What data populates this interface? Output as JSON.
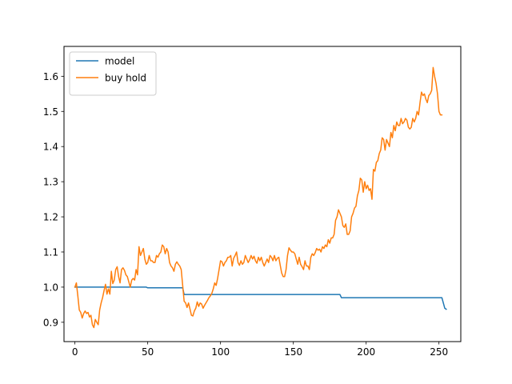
{
  "chart_data": {
    "type": "line",
    "title": "",
    "xlabel": "",
    "ylabel": "",
    "xlim": [
      -7.5,
      265
    ],
    "ylim": [
      0.845,
      1.685
    ],
    "xticks": [
      0,
      50,
      100,
      150,
      200,
      250
    ],
    "yticks": [
      0.9,
      1.0,
      1.1,
      1.2,
      1.3,
      1.4,
      1.5,
      1.6
    ],
    "grid": false,
    "legend": {
      "position": "top-left"
    },
    "series": [
      {
        "name": "model",
        "color": "#1f77b4",
        "points": [
          [
            0,
            1.0
          ],
          [
            49,
            1.0
          ],
          [
            50,
            0.998
          ],
          [
            74,
            0.998
          ],
          [
            75,
            0.979
          ],
          [
            182,
            0.979
          ],
          [
            183,
            0.97
          ],
          [
            252,
            0.97
          ],
          [
            254,
            0.94
          ],
          [
            255,
            0.937
          ]
        ]
      },
      {
        "name": "buy hold",
        "color": "#ff7f0e",
        "points": [
          [
            0,
            1.0
          ],
          [
            1,
            1.012
          ],
          [
            2,
            0.975
          ],
          [
            3,
            0.935
          ],
          [
            4,
            0.928
          ],
          [
            5,
            0.912
          ],
          [
            6,
            0.925
          ],
          [
            7,
            0.932
          ],
          [
            8,
            0.925
          ],
          [
            9,
            0.928
          ],
          [
            10,
            0.915
          ],
          [
            11,
            0.92
          ],
          [
            12,
            0.893
          ],
          [
            13,
            0.885
          ],
          [
            14,
            0.908
          ],
          [
            15,
            0.9
          ],
          [
            16,
            0.893
          ],
          [
            17,
            0.935
          ],
          [
            18,
            0.955
          ],
          [
            19,
            0.97
          ],
          [
            20,
            0.99
          ],
          [
            21,
            1.008
          ],
          [
            22,
            0.98
          ],
          [
            23,
            0.995
          ],
          [
            24,
            0.98
          ],
          [
            25,
            1.045
          ],
          [
            26,
            1.01
          ],
          [
            27,
            1.02
          ],
          [
            28,
            1.05
          ],
          [
            29,
            1.058
          ],
          [
            30,
            1.03
          ],
          [
            31,
            1.012
          ],
          [
            32,
            1.05
          ],
          [
            33,
            1.055
          ],
          [
            34,
            1.048
          ],
          [
            35,
            1.035
          ],
          [
            36,
            1.03
          ],
          [
            37,
            1.015
          ],
          [
            38,
            1.0
          ],
          [
            39,
            1.02
          ],
          [
            40,
            1.025
          ],
          [
            41,
            1.02
          ],
          [
            42,
            1.05
          ],
          [
            43,
            1.035
          ],
          [
            44,
            1.115
          ],
          [
            45,
            1.09
          ],
          [
            46,
            1.1
          ],
          [
            47,
            1.11
          ],
          [
            48,
            1.08
          ],
          [
            49,
            1.065
          ],
          [
            50,
            1.07
          ],
          [
            51,
            1.09
          ],
          [
            52,
            1.075
          ],
          [
            53,
            1.075
          ],
          [
            54,
            1.07
          ],
          [
            55,
            1.07
          ],
          [
            56,
            1.09
          ],
          [
            57,
            1.085
          ],
          [
            58,
            1.095
          ],
          [
            59,
            1.1
          ],
          [
            60,
            1.12
          ],
          [
            61,
            1.115
          ],
          [
            62,
            1.095
          ],
          [
            63,
            1.11
          ],
          [
            64,
            1.1
          ],
          [
            65,
            1.07
          ],
          [
            66,
            1.06
          ],
          [
            67,
            1.055
          ],
          [
            68,
            1.045
          ],
          [
            69,
            1.065
          ],
          [
            70,
            1.072
          ],
          [
            71,
            1.065
          ],
          [
            72,
            1.06
          ],
          [
            73,
            1.05
          ],
          [
            74,
            1.005
          ],
          [
            75,
            0.96
          ],
          [
            76,
            0.955
          ],
          [
            77,
            0.942
          ],
          [
            78,
            0.955
          ],
          [
            79,
            0.938
          ],
          [
            80,
            0.92
          ],
          [
            81,
            0.918
          ],
          [
            82,
            0.932
          ],
          [
            83,
            0.94
          ],
          [
            84,
            0.958
          ],
          [
            85,
            0.945
          ],
          [
            86,
            0.955
          ],
          [
            87,
            0.952
          ],
          [
            88,
            0.94
          ],
          [
            89,
            0.948
          ],
          [
            90,
            0.955
          ],
          [
            91,
            0.962
          ],
          [
            92,
            0.97
          ],
          [
            93,
            0.975
          ],
          [
            94,
            0.982
          ],
          [
            95,
            0.995
          ],
          [
            96,
            1.012
          ],
          [
            97,
            1.005
          ],
          [
            98,
            1.025
          ],
          [
            99,
            1.05
          ],
          [
            100,
            1.075
          ],
          [
            101,
            1.072
          ],
          [
            102,
            1.06
          ],
          [
            103,
            1.07
          ],
          [
            104,
            1.075
          ],
          [
            105,
            1.085
          ],
          [
            106,
            1.085
          ],
          [
            107,
            1.09
          ],
          [
            108,
            1.06
          ],
          [
            109,
            1.082
          ],
          [
            110,
            1.09
          ],
          [
            111,
            1.1
          ],
          [
            112,
            1.07
          ],
          [
            113,
            1.062
          ],
          [
            114,
            1.075
          ],
          [
            115,
            1.065
          ],
          [
            116,
            1.07
          ],
          [
            117,
            1.09
          ],
          [
            118,
            1.08
          ],
          [
            119,
            1.07
          ],
          [
            120,
            1.078
          ],
          [
            121,
            1.09
          ],
          [
            122,
            1.08
          ],
          [
            123,
            1.088
          ],
          [
            124,
            1.075
          ],
          [
            125,
            1.068
          ],
          [
            126,
            1.085
          ],
          [
            127,
            1.075
          ],
          [
            128,
            1.085
          ],
          [
            129,
            1.07
          ],
          [
            130,
            1.06
          ],
          [
            131,
            1.07
          ],
          [
            132,
            1.08
          ],
          [
            133,
            1.07
          ],
          [
            134,
            1.09
          ],
          [
            135,
            1.085
          ],
          [
            136,
            1.075
          ],
          [
            137,
            1.09
          ],
          [
            138,
            1.075
          ],
          [
            139,
            1.082
          ],
          [
            140,
            1.085
          ],
          [
            141,
            1.062
          ],
          [
            142,
            1.04
          ],
          [
            143,
            1.03
          ],
          [
            144,
            1.03
          ],
          [
            145,
            1.05
          ],
          [
            146,
            1.09
          ],
          [
            147,
            1.112
          ],
          [
            148,
            1.105
          ],
          [
            149,
            1.1
          ],
          [
            150,
            1.1
          ],
          [
            151,
            1.095
          ],
          [
            152,
            1.08
          ],
          [
            153,
            1.065
          ],
          [
            154,
            1.085
          ],
          [
            155,
            1.065
          ],
          [
            156,
            1.058
          ],
          [
            157,
            1.05
          ],
          [
            158,
            1.075
          ],
          [
            159,
            1.06
          ],
          [
            160,
            1.06
          ],
          [
            161,
            1.05
          ],
          [
            162,
            1.085
          ],
          [
            163,
            1.095
          ],
          [
            164,
            1.09
          ],
          [
            165,
            1.098
          ],
          [
            166,
            1.11
          ],
          [
            167,
            1.105
          ],
          [
            168,
            1.108
          ],
          [
            169,
            1.1
          ],
          [
            170,
            1.115
          ],
          [
            171,
            1.11
          ],
          [
            172,
            1.12
          ],
          [
            173,
            1.115
          ],
          [
            174,
            1.135
          ],
          [
            175,
            1.125
          ],
          [
            176,
            1.14
          ],
          [
            177,
            1.14
          ],
          [
            178,
            1.15
          ],
          [
            179,
            1.19
          ],
          [
            180,
            1.2
          ],
          [
            181,
            1.22
          ],
          [
            182,
            1.21
          ],
          [
            183,
            1.2
          ],
          [
            184,
            1.175
          ],
          [
            185,
            1.17
          ],
          [
            186,
            1.18
          ],
          [
            187,
            1.15
          ],
          [
            188,
            1.15
          ],
          [
            189,
            1.16
          ],
          [
            190,
            1.2
          ],
          [
            191,
            1.21
          ],
          [
            192,
            1.225
          ],
          [
            193,
            1.23
          ],
          [
            194,
            1.26
          ],
          [
            195,
            1.275
          ],
          [
            196,
            1.31
          ],
          [
            197,
            1.305
          ],
          [
            198,
            1.27
          ],
          [
            199,
            1.3
          ],
          [
            200,
            1.28
          ],
          [
            201,
            1.29
          ],
          [
            202,
            1.275
          ],
          [
            203,
            1.28
          ],
          [
            204,
            1.25
          ],
          [
            205,
            1.335
          ],
          [
            206,
            1.33
          ],
          [
            207,
            1.355
          ],
          [
            208,
            1.36
          ],
          [
            209,
            1.38
          ],
          [
            210,
            1.39
          ],
          [
            211,
            1.425
          ],
          [
            212,
            1.42
          ],
          [
            213,
            1.39
          ],
          [
            214,
            1.42
          ],
          [
            215,
            1.41
          ],
          [
            216,
            1.4
          ],
          [
            217,
            1.44
          ],
          [
            218,
            1.425
          ],
          [
            219,
            1.46
          ],
          [
            220,
            1.445
          ],
          [
            221,
            1.47
          ],
          [
            222,
            1.46
          ],
          [
            223,
            1.46
          ],
          [
            224,
            1.48
          ],
          [
            225,
            1.465
          ],
          [
            226,
            1.47
          ],
          [
            227,
            1.48
          ],
          [
            228,
            1.475
          ],
          [
            229,
            1.455
          ],
          [
            230,
            1.45
          ],
          [
            231,
            1.455
          ],
          [
            232,
            1.48
          ],
          [
            233,
            1.47
          ],
          [
            234,
            1.48
          ],
          [
            235,
            1.5
          ],
          [
            236,
            1.49
          ],
          [
            237,
            1.525
          ],
          [
            238,
            1.555
          ],
          [
            239,
            1.545
          ],
          [
            240,
            1.55
          ],
          [
            241,
            1.535
          ],
          [
            242,
            1.525
          ],
          [
            243,
            1.545
          ],
          [
            244,
            1.55
          ],
          [
            245,
            1.56
          ],
          [
            246,
            1.625
          ],
          [
            247,
            1.6
          ],
          [
            248,
            1.58
          ],
          [
            249,
            1.55
          ],
          [
            250,
            1.5
          ],
          [
            251,
            1.49
          ],
          [
            252,
            1.49
          ]
        ]
      }
    ]
  }
}
